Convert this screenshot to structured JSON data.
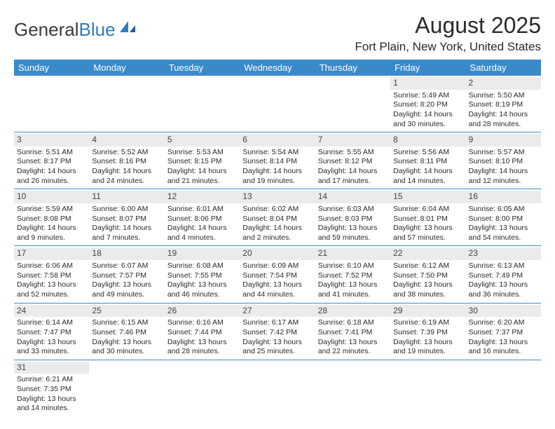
{
  "brand": {
    "part1": "General",
    "part2": "Blue"
  },
  "title": "August 2025",
  "location": "Fort Plain, New York, United States",
  "header_bg": "#3a8ac9",
  "header_fg": "#ffffff",
  "daynum_bg": "#eceaea",
  "border_color": "#3a8ac9",
  "weekdays": [
    "Sunday",
    "Monday",
    "Tuesday",
    "Wednesday",
    "Thursday",
    "Friday",
    "Saturday"
  ],
  "weeks": [
    [
      {
        "n": "",
        "lines": []
      },
      {
        "n": "",
        "lines": []
      },
      {
        "n": "",
        "lines": []
      },
      {
        "n": "",
        "lines": []
      },
      {
        "n": "",
        "lines": []
      },
      {
        "n": "1",
        "lines": [
          "Sunrise: 5:49 AM",
          "Sunset: 8:20 PM",
          "Daylight: 14 hours",
          "and 30 minutes."
        ]
      },
      {
        "n": "2",
        "lines": [
          "Sunrise: 5:50 AM",
          "Sunset: 8:19 PM",
          "Daylight: 14 hours",
          "and 28 minutes."
        ]
      }
    ],
    [
      {
        "n": "3",
        "lines": [
          "Sunrise: 5:51 AM",
          "Sunset: 8:17 PM",
          "Daylight: 14 hours",
          "and 26 minutes."
        ]
      },
      {
        "n": "4",
        "lines": [
          "Sunrise: 5:52 AM",
          "Sunset: 8:16 PM",
          "Daylight: 14 hours",
          "and 24 minutes."
        ]
      },
      {
        "n": "5",
        "lines": [
          "Sunrise: 5:53 AM",
          "Sunset: 8:15 PM",
          "Daylight: 14 hours",
          "and 21 minutes."
        ]
      },
      {
        "n": "6",
        "lines": [
          "Sunrise: 5:54 AM",
          "Sunset: 8:14 PM",
          "Daylight: 14 hours",
          "and 19 minutes."
        ]
      },
      {
        "n": "7",
        "lines": [
          "Sunrise: 5:55 AM",
          "Sunset: 8:12 PM",
          "Daylight: 14 hours",
          "and 17 minutes."
        ]
      },
      {
        "n": "8",
        "lines": [
          "Sunrise: 5:56 AM",
          "Sunset: 8:11 PM",
          "Daylight: 14 hours",
          "and 14 minutes."
        ]
      },
      {
        "n": "9",
        "lines": [
          "Sunrise: 5:57 AM",
          "Sunset: 8:10 PM",
          "Daylight: 14 hours",
          "and 12 minutes."
        ]
      }
    ],
    [
      {
        "n": "10",
        "lines": [
          "Sunrise: 5:59 AM",
          "Sunset: 8:08 PM",
          "Daylight: 14 hours",
          "and 9 minutes."
        ]
      },
      {
        "n": "11",
        "lines": [
          "Sunrise: 6:00 AM",
          "Sunset: 8:07 PM",
          "Daylight: 14 hours",
          "and 7 minutes."
        ]
      },
      {
        "n": "12",
        "lines": [
          "Sunrise: 6:01 AM",
          "Sunset: 8:06 PM",
          "Daylight: 14 hours",
          "and 4 minutes."
        ]
      },
      {
        "n": "13",
        "lines": [
          "Sunrise: 6:02 AM",
          "Sunset: 8:04 PM",
          "Daylight: 14 hours",
          "and 2 minutes."
        ]
      },
      {
        "n": "14",
        "lines": [
          "Sunrise: 6:03 AM",
          "Sunset: 8:03 PM",
          "Daylight: 13 hours",
          "and 59 minutes."
        ]
      },
      {
        "n": "15",
        "lines": [
          "Sunrise: 6:04 AM",
          "Sunset: 8:01 PM",
          "Daylight: 13 hours",
          "and 57 minutes."
        ]
      },
      {
        "n": "16",
        "lines": [
          "Sunrise: 6:05 AM",
          "Sunset: 8:00 PM",
          "Daylight: 13 hours",
          "and 54 minutes."
        ]
      }
    ],
    [
      {
        "n": "17",
        "lines": [
          "Sunrise: 6:06 AM",
          "Sunset: 7:58 PM",
          "Daylight: 13 hours",
          "and 52 minutes."
        ]
      },
      {
        "n": "18",
        "lines": [
          "Sunrise: 6:07 AM",
          "Sunset: 7:57 PM",
          "Daylight: 13 hours",
          "and 49 minutes."
        ]
      },
      {
        "n": "19",
        "lines": [
          "Sunrise: 6:08 AM",
          "Sunset: 7:55 PM",
          "Daylight: 13 hours",
          "and 46 minutes."
        ]
      },
      {
        "n": "20",
        "lines": [
          "Sunrise: 6:09 AM",
          "Sunset: 7:54 PM",
          "Daylight: 13 hours",
          "and 44 minutes."
        ]
      },
      {
        "n": "21",
        "lines": [
          "Sunrise: 6:10 AM",
          "Sunset: 7:52 PM",
          "Daylight: 13 hours",
          "and 41 minutes."
        ]
      },
      {
        "n": "22",
        "lines": [
          "Sunrise: 6:12 AM",
          "Sunset: 7:50 PM",
          "Daylight: 13 hours",
          "and 38 minutes."
        ]
      },
      {
        "n": "23",
        "lines": [
          "Sunrise: 6:13 AM",
          "Sunset: 7:49 PM",
          "Daylight: 13 hours",
          "and 36 minutes."
        ]
      }
    ],
    [
      {
        "n": "24",
        "lines": [
          "Sunrise: 6:14 AM",
          "Sunset: 7:47 PM",
          "Daylight: 13 hours",
          "and 33 minutes."
        ]
      },
      {
        "n": "25",
        "lines": [
          "Sunrise: 6:15 AM",
          "Sunset: 7:46 PM",
          "Daylight: 13 hours",
          "and 30 minutes."
        ]
      },
      {
        "n": "26",
        "lines": [
          "Sunrise: 6:16 AM",
          "Sunset: 7:44 PM",
          "Daylight: 13 hours",
          "and 28 minutes."
        ]
      },
      {
        "n": "27",
        "lines": [
          "Sunrise: 6:17 AM",
          "Sunset: 7:42 PM",
          "Daylight: 13 hours",
          "and 25 minutes."
        ]
      },
      {
        "n": "28",
        "lines": [
          "Sunrise: 6:18 AM",
          "Sunset: 7:41 PM",
          "Daylight: 13 hours",
          "and 22 minutes."
        ]
      },
      {
        "n": "29",
        "lines": [
          "Sunrise: 6:19 AM",
          "Sunset: 7:39 PM",
          "Daylight: 13 hours",
          "and 19 minutes."
        ]
      },
      {
        "n": "30",
        "lines": [
          "Sunrise: 6:20 AM",
          "Sunset: 7:37 PM",
          "Daylight: 13 hours",
          "and 16 minutes."
        ]
      }
    ],
    [
      {
        "n": "31",
        "lines": [
          "Sunrise: 6:21 AM",
          "Sunset: 7:35 PM",
          "Daylight: 13 hours",
          "and 14 minutes."
        ]
      },
      {
        "n": "",
        "lines": []
      },
      {
        "n": "",
        "lines": []
      },
      {
        "n": "",
        "lines": []
      },
      {
        "n": "",
        "lines": []
      },
      {
        "n": "",
        "lines": []
      },
      {
        "n": "",
        "lines": []
      }
    ]
  ]
}
